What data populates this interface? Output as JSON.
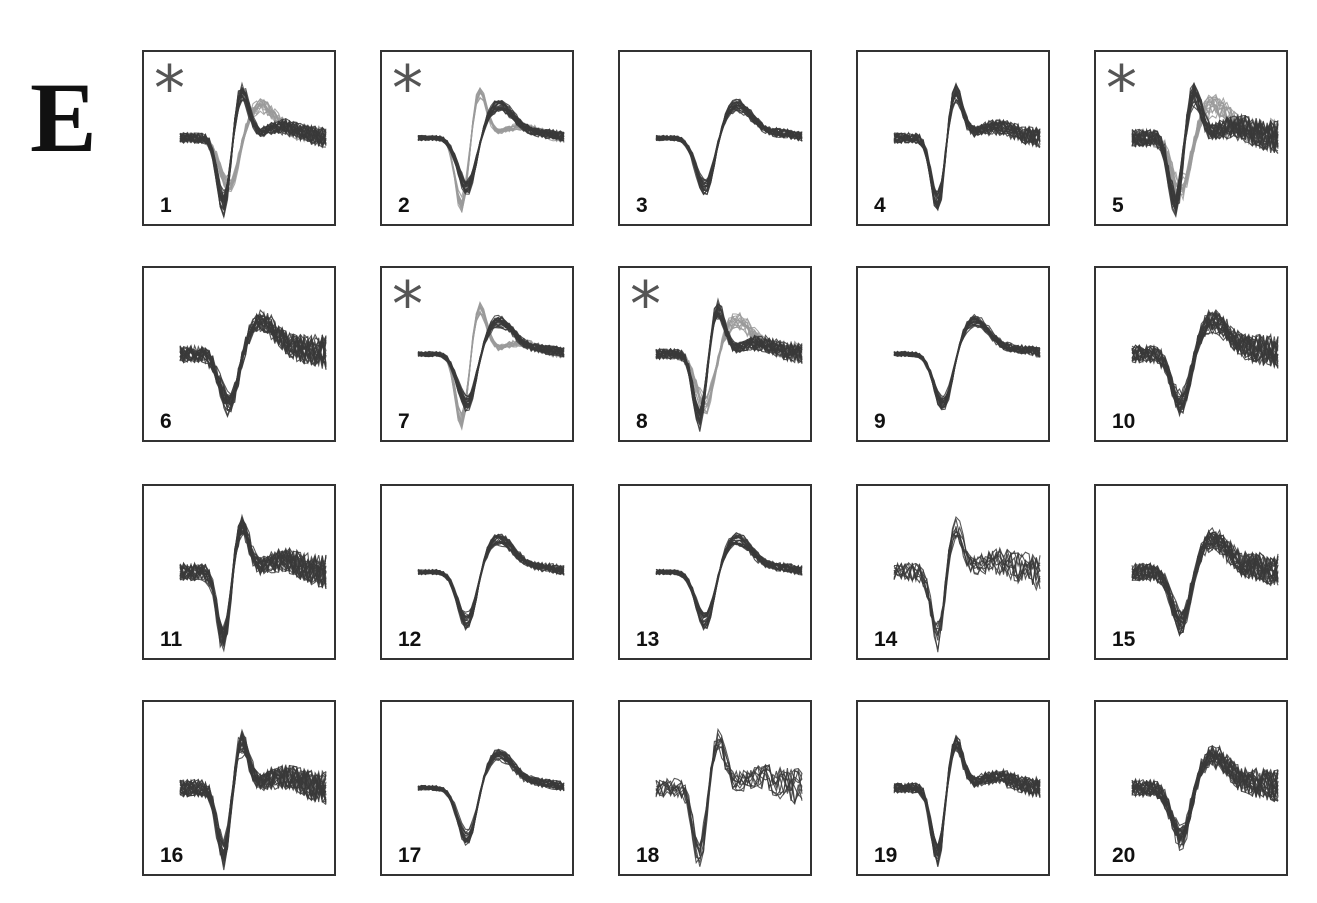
{
  "figure": {
    "panel_label": "E",
    "star_glyph": "*",
    "trace_colors": {
      "dark": "#3a3a3a",
      "light": "#9a9a9a"
    },
    "units": [
      {
        "label": "1",
        "marked": true,
        "two_shapes": true,
        "shape": "biphasic",
        "noise": "medium"
      },
      {
        "label": "2",
        "marked": true,
        "two_shapes": true,
        "shape": "broad",
        "noise": "low"
      },
      {
        "label": "3",
        "marked": false,
        "two_shapes": false,
        "shape": "broad",
        "noise": "low"
      },
      {
        "label": "4",
        "marked": false,
        "two_shapes": false,
        "shape": "biphasic",
        "noise": "medium"
      },
      {
        "label": "5",
        "marked": true,
        "two_shapes": true,
        "shape": "biphasic",
        "noise": "high"
      },
      {
        "label": "6",
        "marked": false,
        "two_shapes": false,
        "shape": "broad",
        "noise": "high"
      },
      {
        "label": "7",
        "marked": true,
        "two_shapes": true,
        "shape": "broad",
        "noise": "low"
      },
      {
        "label": "8",
        "marked": true,
        "two_shapes": true,
        "shape": "biphasic",
        "noise": "medium"
      },
      {
        "label": "9",
        "marked": false,
        "two_shapes": false,
        "shape": "broad",
        "noise": "low"
      },
      {
        "label": "10",
        "marked": false,
        "two_shapes": false,
        "shape": "broad",
        "noise": "high"
      },
      {
        "label": "11",
        "marked": false,
        "two_shapes": false,
        "shape": "biphasic",
        "noise": "high"
      },
      {
        "label": "12",
        "marked": false,
        "two_shapes": false,
        "shape": "broad",
        "noise": "low"
      },
      {
        "label": "13",
        "marked": false,
        "two_shapes": false,
        "shape": "broad",
        "noise": "low"
      },
      {
        "label": "14",
        "marked": false,
        "two_shapes": false,
        "shape": "biphasic",
        "noise": "sparse"
      },
      {
        "label": "15",
        "marked": false,
        "two_shapes": false,
        "shape": "broad",
        "noise": "high"
      },
      {
        "label": "16",
        "marked": false,
        "two_shapes": false,
        "shape": "biphasic",
        "noise": "high"
      },
      {
        "label": "17",
        "marked": false,
        "two_shapes": false,
        "shape": "broad",
        "noise": "low"
      },
      {
        "label": "18",
        "marked": false,
        "two_shapes": false,
        "shape": "biphasic",
        "noise": "sparse"
      },
      {
        "label": "19",
        "marked": false,
        "two_shapes": false,
        "shape": "biphasic",
        "noise": "medium"
      },
      {
        "label": "20",
        "marked": false,
        "two_shapes": false,
        "shape": "broad",
        "noise": "high"
      }
    ]
  }
}
